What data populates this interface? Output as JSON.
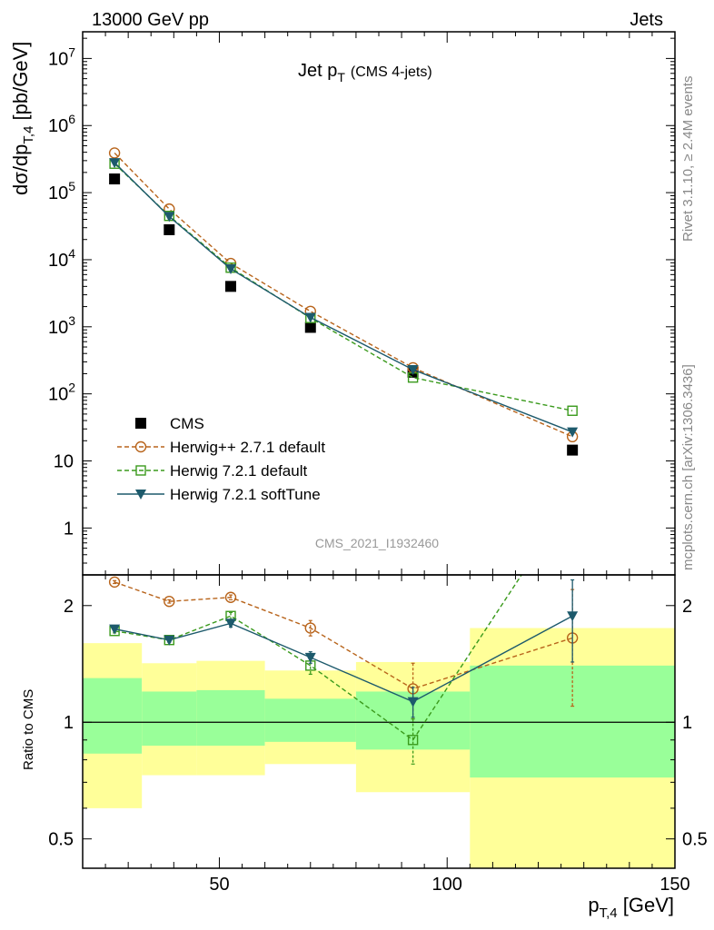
{
  "header": {
    "left": "13000 GeV pp",
    "right": "Jets"
  },
  "side_labels": {
    "rivet": "Rivet 3.1.10, ≥ 2.4M events",
    "mcplots": "mcplots.cern.ch [arXiv:1306.3436]"
  },
  "analysis_id": "CMS_2021_I1932460",
  "main_title": {
    "text": "Jet p",
    "sub": "T",
    "extra": "(CMS 4-jets)"
  },
  "ylabel_main": {
    "pre": "dσ/dp",
    "sub": "T,4",
    "post": " [pb/GeV]"
  },
  "ylabel_ratio": "Ratio to CMS",
  "xlabel": {
    "pre": "p",
    "sub": "T,4",
    "post": " [GeV]"
  },
  "main_ticks": {
    "y": [
      {
        "v": 1,
        "base": "1",
        "exp": ""
      },
      {
        "v": 10,
        "base": "10",
        "exp": ""
      },
      {
        "v": 100,
        "base": "10",
        "exp": "2"
      },
      {
        "v": 1000,
        "base": "10",
        "exp": "3"
      },
      {
        "v": 10000,
        "base": "10",
        "exp": "4"
      },
      {
        "v": 100000,
        "base": "10",
        "exp": "5"
      },
      {
        "v": 1000000,
        "base": "10",
        "exp": "6"
      },
      {
        "v": 10000000,
        "base": "10",
        "exp": "7"
      }
    ]
  },
  "ratio_ticks": {
    "y": [
      {
        "v": 0.5,
        "label": "0.5"
      },
      {
        "v": 1,
        "label": "1"
      },
      {
        "v": 2,
        "label": "2"
      }
    ]
  },
  "x_ticks": [
    {
      "v": 50,
      "label": "50"
    },
    {
      "v": 100,
      "label": "100"
    },
    {
      "v": 150,
      "label": "150"
    }
  ],
  "legend": [
    {
      "label": "CMS",
      "color": "#000000",
      "marker": "square-filled",
      "line": "none"
    },
    {
      "label": "Herwig++ 2.7.1 default",
      "color": "#b8641b",
      "marker": "circle-open",
      "line": "dashed"
    },
    {
      "label": "Herwig 7.2.1 default",
      "color": "#3a9a1c",
      "marker": "square-open",
      "line": "dashed"
    },
    {
      "label": "Herwig 7.2.1 softTune",
      "color": "#1d5a6c",
      "marker": "triangle-down-filled",
      "line": "solid"
    }
  ],
  "chart_data": {
    "type": "scatter",
    "x_scale": "linear",
    "y_scale": "log",
    "xlim": [
      20,
      150
    ],
    "ylim": [
      0.2,
      25000000
    ],
    "ratio_ylim": [
      0.42,
      2.4
    ],
    "ratio_y_scale": "log",
    "x": [
      27,
      39,
      52.5,
      70,
      92.5,
      127.5
    ],
    "bins": [
      [
        20,
        33
      ],
      [
        33,
        45
      ],
      [
        45,
        60
      ],
      [
        60,
        80
      ],
      [
        80,
        105
      ],
      [
        105,
        150
      ]
    ],
    "series": [
      {
        "name": "CMS",
        "values": [
          160000,
          28000,
          4000,
          980,
          210,
          14.5
        ]
      },
      {
        "name": "Herwig++ 2.7.1 default",
        "values": [
          390000,
          57000,
          8800,
          1700,
          245,
          23
        ]
      },
      {
        "name": "Herwig 7.2.1 default",
        "values": [
          270000,
          45000,
          7600,
          1350,
          175,
          56
        ]
      },
      {
        "name": "Herwig 7.2.1 softTune",
        "values": [
          280000,
          44000,
          7300,
          1380,
          230,
          27
        ]
      }
    ],
    "ratio": [
      {
        "name": "Herwig++ 2.7.1 default",
        "values": [
          2.3,
          2.05,
          2.1,
          1.75,
          1.22,
          1.65
        ],
        "errors": [
          0.02,
          0.02,
          0.03,
          0.08,
          0.2,
          0.55
        ]
      },
      {
        "name": "Herwig 7.2.1 default",
        "values": [
          1.72,
          1.63,
          1.88,
          1.4,
          0.9,
          3.8
        ],
        "errors": [
          0.02,
          0.02,
          0.04,
          0.07,
          0.12,
          0.4
        ]
      },
      {
        "name": "Herwig 7.2.1 softTune",
        "values": [
          1.74,
          1.63,
          1.8,
          1.47,
          1.13,
          1.88
        ],
        "errors": [
          0.02,
          0.02,
          0.04,
          0.05,
          0.1,
          0.45
        ]
      }
    ],
    "uncertainty_bands": {
      "inner": [
        [
          0.83,
          1.3
        ],
        [
          0.87,
          1.2
        ],
        [
          0.87,
          1.21
        ],
        [
          0.89,
          1.15
        ],
        [
          0.85,
          1.2
        ],
        [
          0.72,
          1.4
        ]
      ],
      "outer": [
        [
          0.6,
          1.6
        ],
        [
          0.73,
          1.42
        ],
        [
          0.73,
          1.44
        ],
        [
          0.78,
          1.36
        ],
        [
          0.66,
          1.43
        ],
        [
          0.42,
          1.75
        ]
      ]
    }
  },
  "colors": {
    "band_inner": "#99ff99",
    "band_outer": "#ffff99"
  }
}
